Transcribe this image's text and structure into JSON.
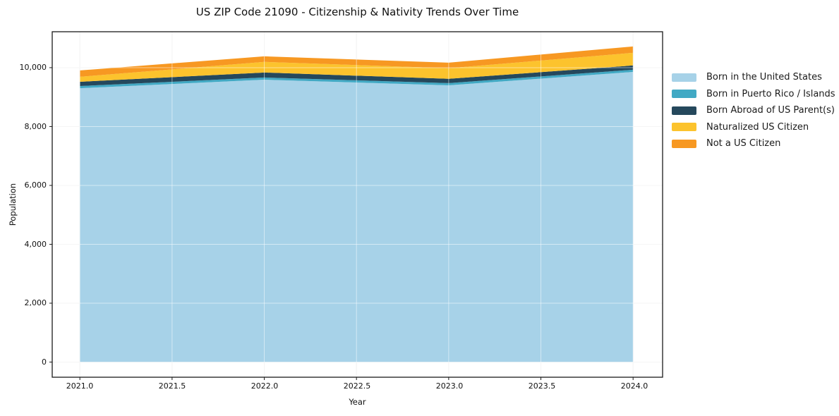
{
  "figure": {
    "title": "US ZIP Code 21090 - Citizenship & Nativity Trends Over Time",
    "xlabel": "Year",
    "ylabel": "Population"
  },
  "axes": {
    "x_tick_labels": [
      "2021.0",
      "2021.5",
      "2022.0",
      "2022.5",
      "2023.0",
      "2023.5",
      "2024.0"
    ],
    "y_tick_labels": [
      "0",
      "2,000",
      "4,000",
      "6,000",
      "8,000",
      "10,000"
    ]
  },
  "colors": {
    "background": "#ffffff",
    "frame": "#1a1a1a",
    "grid_under": "#ebebeb",
    "grid_over": "rgba(255,255,255,0.5)",
    "born_us": "#a7d2e8",
    "puerto_rico": "#41a9c4",
    "born_abroad": "#25485c",
    "naturalized": "#fcc32d",
    "not_citizen": "#f79822"
  },
  "legend": {
    "items": [
      {
        "label": "Born in the United States",
        "color": "#a7d2e8"
      },
      {
        "label": "Born in Puerto Rico / Islands",
        "color": "#41a9c4"
      },
      {
        "label": "Born Abroad of US Parent(s)",
        "color": "#25485c"
      },
      {
        "label": "Naturalized US Citizen",
        "color": "#fcc32d"
      },
      {
        "label": "Not a US Citizen",
        "color": "#f79822"
      }
    ]
  },
  "chart_data": {
    "type": "area",
    "stacked": true,
    "title": "US ZIP Code 21090 - Citizenship & Nativity Trends Over Time",
    "xlabel": "Year",
    "ylabel": "Population",
    "x": [
      2021,
      2022,
      2023,
      2024
    ],
    "series": [
      {
        "name": "Born in the United States",
        "color": "#a7d2e8",
        "values": [
          9300,
          9590,
          9400,
          9855
        ]
      },
      {
        "name": "Born in Puerto Rico / Islands",
        "color": "#41a9c4",
        "values": [
          75,
          75,
          75,
          75
        ]
      },
      {
        "name": "Born Abroad of US Parent(s)",
        "color": "#25485c",
        "values": [
          145,
          170,
          145,
          145
        ]
      },
      {
        "name": "Naturalized US Citizen",
        "color": "#fcc32d",
        "values": [
          170,
          360,
          360,
          430
        ]
      },
      {
        "name": "Not a US Citizen",
        "color": "#f79822",
        "values": [
          215,
          190,
          190,
          215
        ]
      }
    ],
    "stacked_totals": [
      9905,
      10385,
      10170,
      10720
    ],
    "x_ticks": [
      2021,
      2021.5,
      2022,
      2022.5,
      2023,
      2023.5,
      2024
    ],
    "y_ticks": [
      0,
      2000,
      4000,
      6000,
      8000,
      10000
    ],
    "xlim": [
      2020.85,
      2024.16
    ],
    "ylim": [
      -515,
      11220
    ],
    "grid": true,
    "legend_position": "right"
  }
}
